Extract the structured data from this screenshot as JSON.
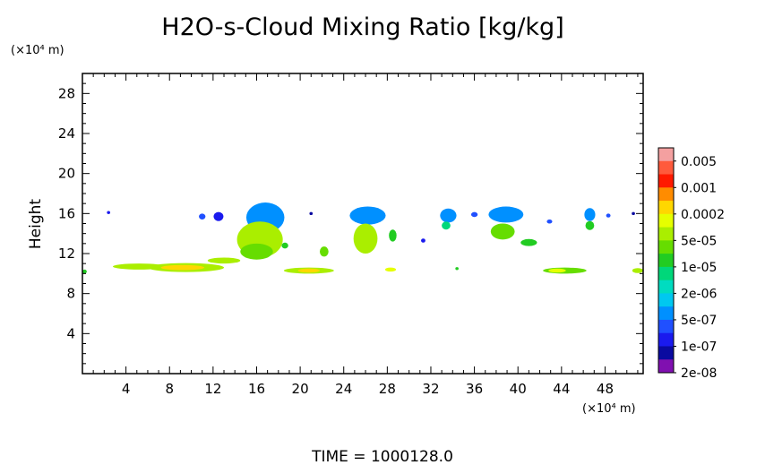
{
  "chart_data": {
    "type": "heatmap",
    "title": "H2O-s-Cloud Mixing Ratio [kg/kg]",
    "ylabel": "Height",
    "y_unit": "(×10⁴ m)",
    "x_unit": "(×10⁴ m)",
    "footer": "TIME = 1000128.0",
    "xlim": [
      0,
      51.5
    ],
    "ylim": [
      0,
      30
    ],
    "x_ticks": [
      4,
      8,
      12,
      16,
      20,
      24,
      28,
      32,
      36,
      40,
      44,
      48
    ],
    "y_ticks": [
      4,
      8,
      12,
      16,
      20,
      24,
      28
    ],
    "colorbar": {
      "labels": [
        "0.005",
        "0.001",
        "0.0002",
        "5e-05",
        "1e-05",
        "2e-06",
        "5e-07",
        "1e-07",
        "2e-08"
      ],
      "colors": [
        "#f4a0a0",
        "#ff5a3c",
        "#ff1a00",
        "#ff8c00",
        "#ffd700",
        "#e6ff00",
        "#aaee00",
        "#66dd00",
        "#22cc22",
        "#00d77a",
        "#00dcc0",
        "#00c8f0",
        "#0090ff",
        "#2050ff",
        "#1a1aee",
        "#0a0aa0",
        "#8010b0"
      ]
    },
    "clouds": [
      {
        "x": 2.4,
        "y": 16.1,
        "w": 0.3,
        "h": 0.3,
        "level": 14
      },
      {
        "x": 11.0,
        "y": 15.7,
        "w": 0.6,
        "h": 0.6,
        "level": 13
      },
      {
        "x": 12.5,
        "y": 15.7,
        "w": 0.9,
        "h": 0.9,
        "level": 14
      },
      {
        "x": 16.8,
        "y": 15.6,
        "w": 3.5,
        "h": 3.0,
        "level": 12
      },
      {
        "x": 16.3,
        "y": 13.4,
        "w": 4.2,
        "h": 3.6,
        "level": 6
      },
      {
        "x": 16.0,
        "y": 12.2,
        "w": 3.0,
        "h": 1.6,
        "level": 7
      },
      {
        "x": 18.6,
        "y": 12.8,
        "w": 0.6,
        "h": 0.6,
        "level": 8
      },
      {
        "x": 21.0,
        "y": 16.0,
        "w": 0.3,
        "h": 0.3,
        "level": 15
      },
      {
        "x": 22.2,
        "y": 12.2,
        "w": 0.8,
        "h": 1.0,
        "level": 7
      },
      {
        "x": 26.2,
        "y": 15.8,
        "w": 3.3,
        "h": 1.8,
        "level": 12
      },
      {
        "x": 26.0,
        "y": 13.5,
        "w": 2.2,
        "h": 3.0,
        "level": 6
      },
      {
        "x": 28.5,
        "y": 13.8,
        "w": 0.7,
        "h": 1.2,
        "level": 8
      },
      {
        "x": 31.3,
        "y": 13.3,
        "w": 0.4,
        "h": 0.4,
        "level": 14
      },
      {
        "x": 33.6,
        "y": 15.8,
        "w": 1.5,
        "h": 1.4,
        "level": 12
      },
      {
        "x": 33.4,
        "y": 14.8,
        "w": 0.8,
        "h": 0.8,
        "level": 9
      },
      {
        "x": 36.0,
        "y": 15.9,
        "w": 0.6,
        "h": 0.5,
        "level": 13
      },
      {
        "x": 38.9,
        "y": 15.9,
        "w": 3.2,
        "h": 1.6,
        "level": 12
      },
      {
        "x": 38.6,
        "y": 14.2,
        "w": 2.2,
        "h": 1.6,
        "level": 7
      },
      {
        "x": 41.0,
        "y": 13.1,
        "w": 1.5,
        "h": 0.7,
        "level": 8
      },
      {
        "x": 42.9,
        "y": 15.2,
        "w": 0.5,
        "h": 0.4,
        "level": 13
      },
      {
        "x": 46.6,
        "y": 15.9,
        "w": 1.0,
        "h": 1.3,
        "level": 12
      },
      {
        "x": 46.6,
        "y": 14.8,
        "w": 0.8,
        "h": 0.9,
        "level": 8
      },
      {
        "x": 48.3,
        "y": 15.8,
        "w": 0.4,
        "h": 0.4,
        "level": 13
      },
      {
        "x": 50.6,
        "y": 16.0,
        "w": 0.3,
        "h": 0.3,
        "level": 15
      },
      {
        "x": 0.2,
        "y": 10.2,
        "w": 0.4,
        "h": 0.4,
        "level": 8
      },
      {
        "x": 5.2,
        "y": 10.7,
        "w": 4.8,
        "h": 0.6,
        "level": 6
      },
      {
        "x": 9.5,
        "y": 10.6,
        "w": 7.0,
        "h": 0.9,
        "level": 6
      },
      {
        "x": 9.2,
        "y": 10.6,
        "w": 4.0,
        "h": 0.5,
        "level": 4
      },
      {
        "x": 13.0,
        "y": 11.3,
        "w": 3.0,
        "h": 0.6,
        "level": 6
      },
      {
        "x": 20.8,
        "y": 10.3,
        "w": 4.6,
        "h": 0.6,
        "level": 6
      },
      {
        "x": 20.8,
        "y": 10.3,
        "w": 2.0,
        "h": 0.4,
        "level": 4
      },
      {
        "x": 28.3,
        "y": 10.4,
        "w": 1.0,
        "h": 0.4,
        "level": 5
      },
      {
        "x": 34.4,
        "y": 10.5,
        "w": 0.3,
        "h": 0.3,
        "level": 8
      },
      {
        "x": 44.3,
        "y": 10.3,
        "w": 4.0,
        "h": 0.6,
        "level": 7
      },
      {
        "x": 43.6,
        "y": 10.3,
        "w": 1.6,
        "h": 0.4,
        "level": 5
      },
      {
        "x": 51.0,
        "y": 10.3,
        "w": 1.0,
        "h": 0.5,
        "level": 6
      }
    ]
  }
}
